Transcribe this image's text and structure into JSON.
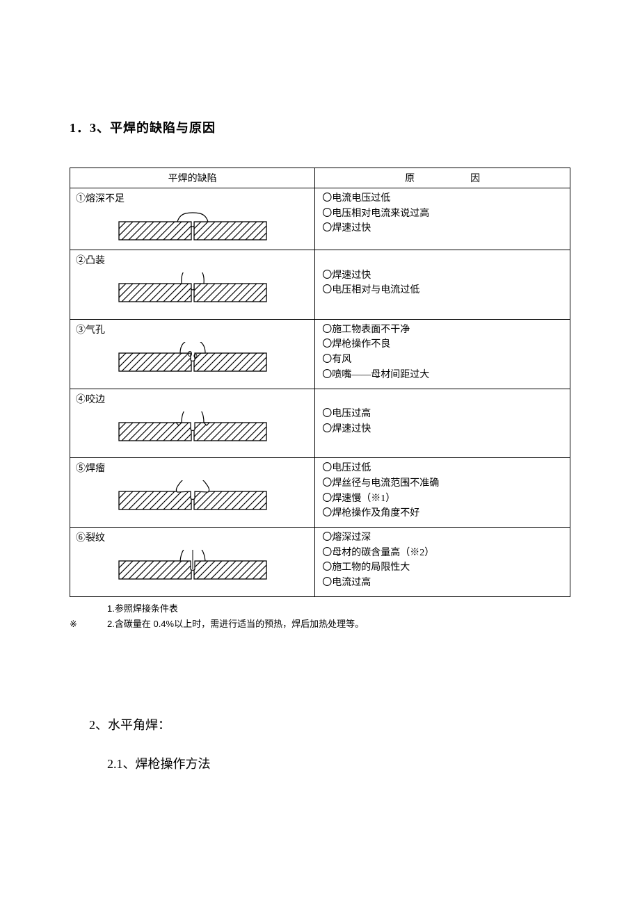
{
  "heading_1_3": "1．3、平焊的缺陷与原因",
  "table": {
    "headers": {
      "defect": "平焊的缺陷",
      "cause_a": "原",
      "cause_b": "因"
    },
    "rows": [
      {
        "label": "①熔深不足",
        "diagram": "shallow",
        "causes": [
          "〇电流电压过低",
          "〇电压相对电流来说过高",
          "〇焊速过快"
        ]
      },
      {
        "label": "②凸装",
        "diagram": "convex",
        "causes": [
          "",
          "〇焊速过快",
          "〇电压相对与电流过低",
          ""
        ]
      },
      {
        "label": "③气孔",
        "diagram": "porosity",
        "causes": [
          "〇施工物表面不干净",
          "〇焊枪操作不良",
          "〇有风",
          "〇喷嘴——母材间距过大"
        ]
      },
      {
        "label": "④咬边",
        "diagram": "undercut",
        "causes": [
          "",
          "〇电压过高",
          "〇焊速过快",
          ""
        ]
      },
      {
        "label": "⑤焊瘤",
        "diagram": "overlap",
        "causes": [
          "〇电压过低",
          "〇焊丝径与电流范围不准确",
          "〇焊速慢（※1）",
          "〇焊枪操作及角度不好"
        ]
      },
      {
        "label": "⑥裂纹",
        "diagram": "crack",
        "causes": [
          "〇熔深过深",
          "〇母材的碳含量高（※2）",
          "〇施工物的局限性大",
          "〇电流过高"
        ]
      }
    ]
  },
  "notes": {
    "star": "※",
    "line1_indent": "　　",
    "line1": "1.参照焊接条件表",
    "line2_indent": "　　",
    "line2": "2.含碳量在 0.4%以上时，需进行适当的预热，焊后加热处理等。"
  },
  "heading_2": "2、水平角焊：",
  "heading_2_1": "2.1、焊枪操作方法",
  "style": {
    "text_color": "#000000",
    "border_color": "#000000",
    "hatch_stroke": "#000000",
    "hatch_width": 1.2,
    "diagram_w": 220,
    "diagram_h": 44
  }
}
